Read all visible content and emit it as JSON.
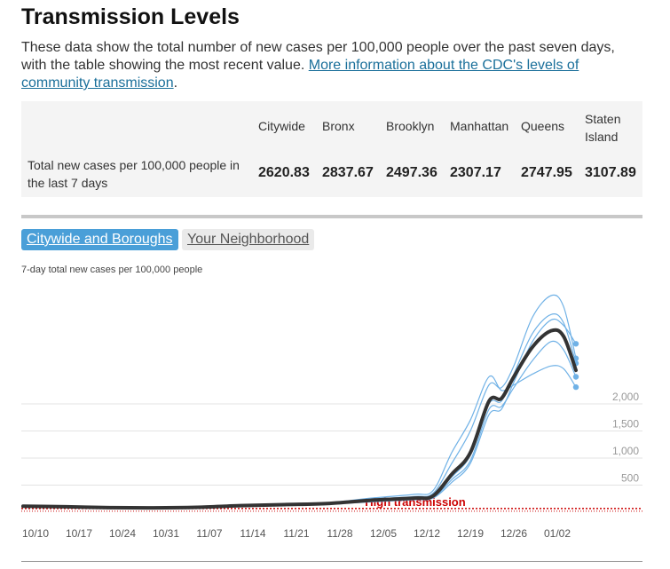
{
  "header": {
    "title": "Transmission Levels",
    "description": "These data show the total number of new cases per 100,000 people over the past seven days, with the table showing the most recent value. ",
    "link_text": "More information about the CDC's levels of community transmission",
    "after_link": "."
  },
  "table": {
    "row_label": "Total new cases per 100,000 people in the last 7 days",
    "columns": [
      {
        "name": "Citywide",
        "value": "2620.83"
      },
      {
        "name": "Bronx",
        "value": "2837.67"
      },
      {
        "name": "Brooklyn",
        "value": "2497.36"
      },
      {
        "name": "Manhattan",
        "value": "2307.17"
      },
      {
        "name": "Queens",
        "value": "2747.95"
      },
      {
        "name": "Staten Island",
        "value": "3107.89"
      }
    ]
  },
  "tabs": {
    "citywide": "Citywide and Boroughs",
    "neighborhood": "Your Neighborhood"
  },
  "chart_data": {
    "type": "line",
    "title": "7-day total new cases per 100,000 people",
    "x_ticks": [
      "10/10",
      "10/17",
      "10/24",
      "10/31",
      "11/07",
      "11/14",
      "11/21",
      "11/28",
      "12/05",
      "12/12",
      "12/19",
      "12/26",
      "01/02"
    ],
    "y_ticks": [
      500,
      1000,
      1500,
      2000
    ],
    "ylim": [
      0,
      4100
    ],
    "threshold": {
      "value": 100,
      "label": "High transmission",
      "color": "#cc0000"
    },
    "colors": {
      "citywide": "#333333",
      "borough": "#6fb1e6"
    },
    "x_dates": [
      "10/08",
      "10/15",
      "10/22",
      "10/29",
      "11/05",
      "11/12",
      "11/19",
      "11/26",
      "12/03",
      "12/10",
      "12/13",
      "12/16",
      "12/19",
      "12/22",
      "12/24",
      "12/26",
      "12/29",
      "01/01",
      "01/03",
      "01/05"
    ],
    "series": [
      {
        "name": "Citywide",
        "values": [
          110,
          100,
          85,
          80,
          90,
          120,
          140,
          160,
          220,
          260,
          300,
          700,
          1100,
          2050,
          2100,
          2500,
          3050,
          3350,
          3250,
          2620
        ]
      },
      {
        "name": "Bronx",
        "values": [
          120,
          110,
          95,
          85,
          95,
          125,
          145,
          170,
          240,
          290,
          350,
          900,
          1500,
          2350,
          2300,
          2700,
          3600,
          4000,
          3800,
          2840
        ]
      },
      {
        "name": "Brooklyn",
        "values": [
          105,
          95,
          80,
          75,
          85,
          115,
          130,
          150,
          200,
          240,
          270,
          600,
          950,
          1900,
          1950,
          2300,
          2800,
          3150,
          3000,
          2500
        ]
      },
      {
        "name": "Manhattan",
        "values": [
          115,
          105,
          90,
          85,
          95,
          125,
          150,
          175,
          260,
          330,
          400,
          1100,
          1700,
          2500,
          2250,
          2350,
          2550,
          2700,
          2650,
          2310
        ]
      },
      {
        "name": "Queens",
        "values": [
          110,
          100,
          85,
          80,
          90,
          118,
          138,
          158,
          215,
          255,
          290,
          650,
          1050,
          2000,
          2050,
          2550,
          3300,
          3650,
          3500,
          2750
        ]
      },
      {
        "name": "Staten Island",
        "values": [
          100,
          90,
          80,
          78,
          88,
          118,
          135,
          150,
          190,
          230,
          260,
          550,
          900,
          1800,
          1900,
          2400,
          3150,
          3550,
          3450,
          3110
        ]
      }
    ]
  }
}
